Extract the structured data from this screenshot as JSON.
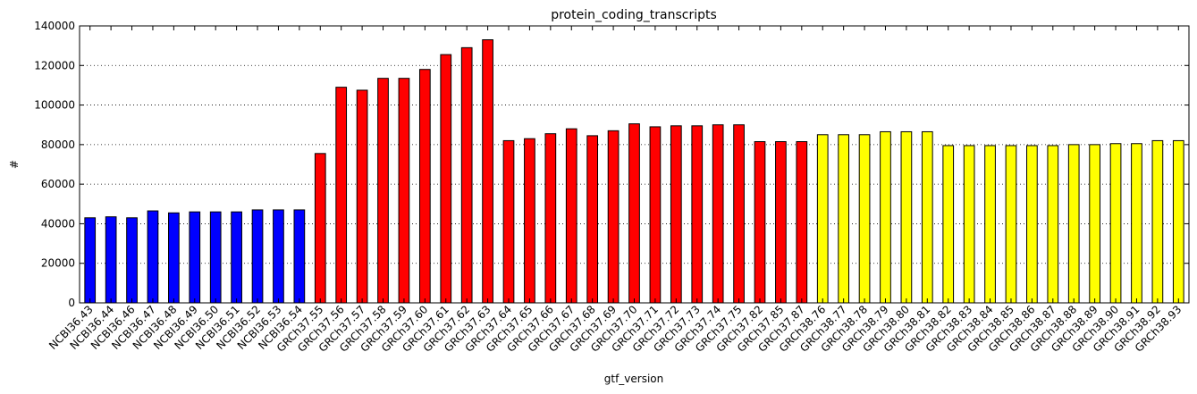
{
  "chart_data": {
    "type": "bar",
    "title": "protein_coding_transcripts",
    "xlabel": "gtf_version",
    "ylabel": "#",
    "ylim": [
      0,
      140000
    ],
    "yticks": [
      0,
      20000,
      40000,
      60000,
      80000,
      100000,
      120000,
      140000
    ],
    "grid": true,
    "categories": [
      "NCBI36.43",
      "NCBI36.44",
      "NCBI36.46",
      "NCBI36.47",
      "NCBI36.48",
      "NCBI36.49",
      "NCBI36.50",
      "NCBI36.51",
      "NCBI36.52",
      "NCBI36.53",
      "NCBI36.54",
      "GRCh37.55",
      "GRCh37.56",
      "GRCh37.57",
      "GRCh37.58",
      "GRCh37.59",
      "GRCh37.60",
      "GRCh37.61",
      "GRCh37.62",
      "GRCh37.63",
      "GRCh37.64",
      "GRCh37.65",
      "GRCh37.66",
      "GRCh37.67",
      "GRCh37.68",
      "GRCh37.69",
      "GRCh37.70",
      "GRCh37.71",
      "GRCh37.72",
      "GRCh37.73",
      "GRCh37.74",
      "GRCh37.75",
      "GRCh37.82",
      "GRCh37.85",
      "GRCh37.87",
      "GRCh38.76",
      "GRCh38.77",
      "GRCh38.78",
      "GRCh38.79",
      "GRCh38.80",
      "GRCh38.81",
      "GRCh38.82",
      "GRCh38.83",
      "GRCh38.84",
      "GRCh38.85",
      "GRCh38.86",
      "GRCh38.87",
      "GRCh38.88",
      "GRCh38.89",
      "GRCh38.90",
      "GRCh38.91",
      "GRCh38.92",
      "GRCh38.93"
    ],
    "values": [
      43000,
      43500,
      43000,
      46500,
      45500,
      46000,
      46000,
      46000,
      47000,
      47000,
      47000,
      75500,
      109000,
      107500,
      113500,
      113500,
      118000,
      125500,
      129000,
      133000,
      82000,
      83000,
      85500,
      88000,
      84500,
      87000,
      90500,
      89000,
      89500,
      89500,
      90000,
      90000,
      81500,
      81500,
      81500,
      85000,
      85000,
      85000,
      86500,
      86500,
      86500,
      79500,
      79500,
      79500,
      79500,
      79500,
      79500,
      80000,
      80000,
      80500,
      80500,
      82000,
      82000
    ],
    "bar_colors": {
      "NCBI36": "#0000ff",
      "GRCh37": "#ff0000",
      "GRCh38": "#ffff00"
    }
  }
}
